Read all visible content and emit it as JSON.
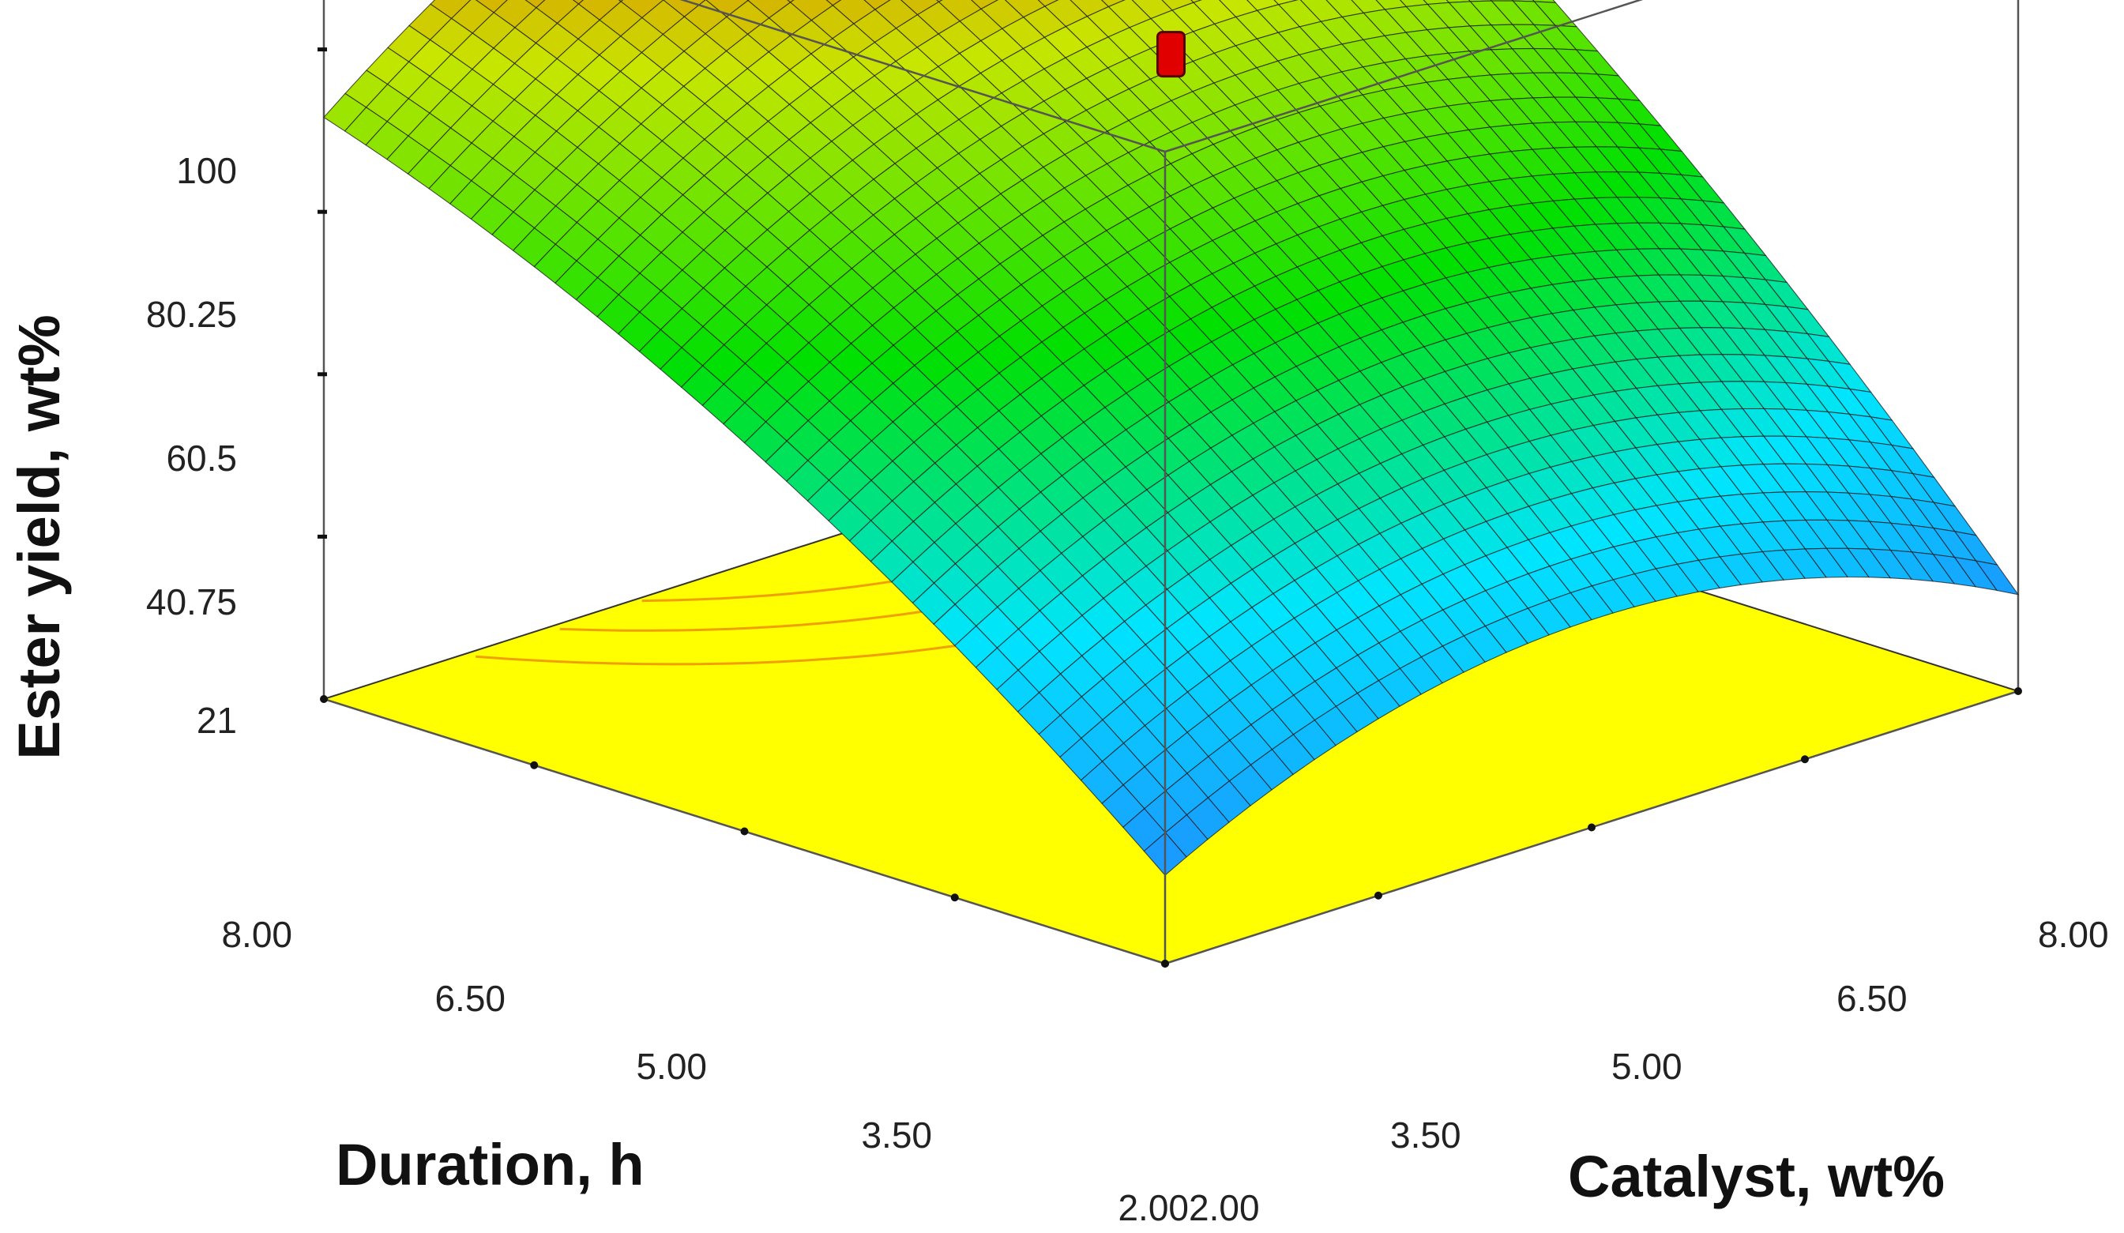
{
  "chart_data": {
    "type": "surface",
    "title": "",
    "xlabel": "Catalyst, wt%",
    "ylabel": "Duration, h",
    "zlabel": "Ester yield, wt%",
    "x_ticks": [
      "2.00",
      "3.50",
      "5.00",
      "6.50",
      "8.00"
    ],
    "y_ticks": [
      "2.00",
      "3.50",
      "5.00",
      "6.50",
      "8.00"
    ],
    "z_ticks": [
      "21",
      "40.75",
      "60.5",
      "80.25",
      "100"
    ],
    "xlim": [
      2.0,
      8.0
    ],
    "ylim": [
      2.0,
      8.0
    ],
    "zlim": [
      1.25,
      100
    ],
    "surface_corners": [
      {
        "catalyst": 2.0,
        "duration": 2.0,
        "ester_yield": 12
      },
      {
        "catalyst": 2.0,
        "duration": 8.0,
        "ester_yield": 72
      },
      {
        "catalyst": 8.0,
        "duration": 2.0,
        "ester_yield": 13
      },
      {
        "catalyst": 8.0,
        "duration": 8.0,
        "ester_yield": 100
      }
    ],
    "design_point": {
      "catalyst": 5.0,
      "duration": 5.0,
      "ester_yield": 79
    },
    "colormap": [
      "#1E8CFF",
      "#00E5FF",
      "#00E000",
      "#C8E600",
      "#FF1A00"
    ],
    "floor_color": "#FFFF00",
    "floor_contour_color": "#F0A000",
    "point_color": "#E00000"
  }
}
